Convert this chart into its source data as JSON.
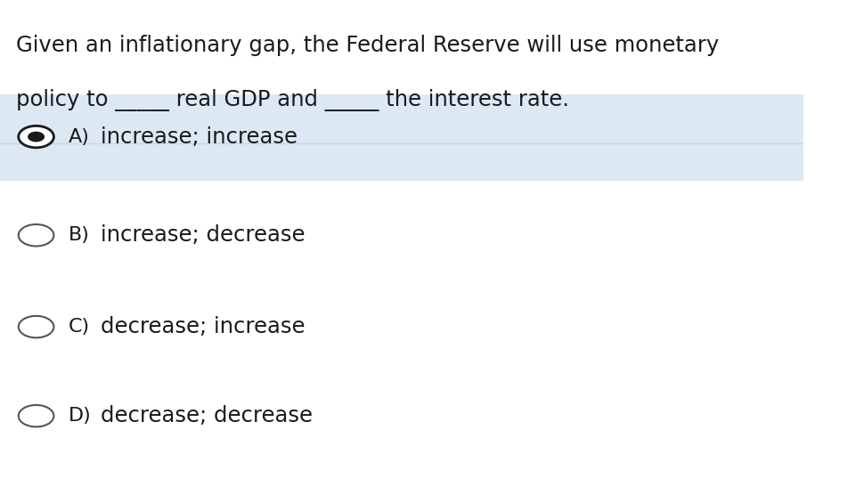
{
  "question_line1": "Given an inflationary gap, the Federal Reserve will use monetary",
  "question_line2": "policy to _____ real GDP and _____ the interest rate.",
  "options": [
    {
      "label": "A)",
      "text": "increase; increase",
      "selected": true
    },
    {
      "label": "B)",
      "text": "increase; decrease",
      "selected": false
    },
    {
      "label": "C)",
      "text": "decrease; increase",
      "selected": false
    },
    {
      "label": "D)",
      "text": "decrease; decrease",
      "selected": false
    }
  ],
  "bg_color": "#ffffff",
  "selected_bg_color": "#dce9f5",
  "text_color": "#1a1a1a",
  "circle_color": "#555555",
  "selected_fill": "#1a1a1a",
  "separator_color": "#c8d4e0",
  "question_fontsize": 17.5,
  "option_label_fontsize": 16,
  "option_text_fontsize": 17.5,
  "font_family": "DejaVu Sans"
}
